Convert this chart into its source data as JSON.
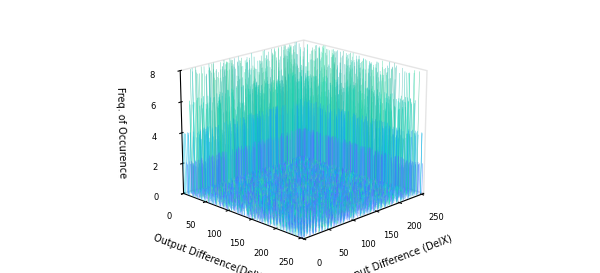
{
  "xlabel": "Input Difference (DelX)",
  "ylabel": "Output Difference(DelY)",
  "zlabel": "Freq. of Occurence",
  "xlim": [
    0,
    255
  ],
  "ylim": [
    0,
    255
  ],
  "zlim": [
    0,
    8
  ],
  "zticks": [
    0,
    2,
    4,
    6,
    8
  ],
  "xticks": [
    0,
    50,
    100,
    150,
    200,
    250
  ],
  "yticks": [
    0,
    50,
    100,
    150,
    200,
    250
  ],
  "n_size": 256,
  "seed": 42,
  "elev": 18,
  "azim": -135,
  "figsize": [
    6.0,
    2.73
  ],
  "dpi": 100
}
